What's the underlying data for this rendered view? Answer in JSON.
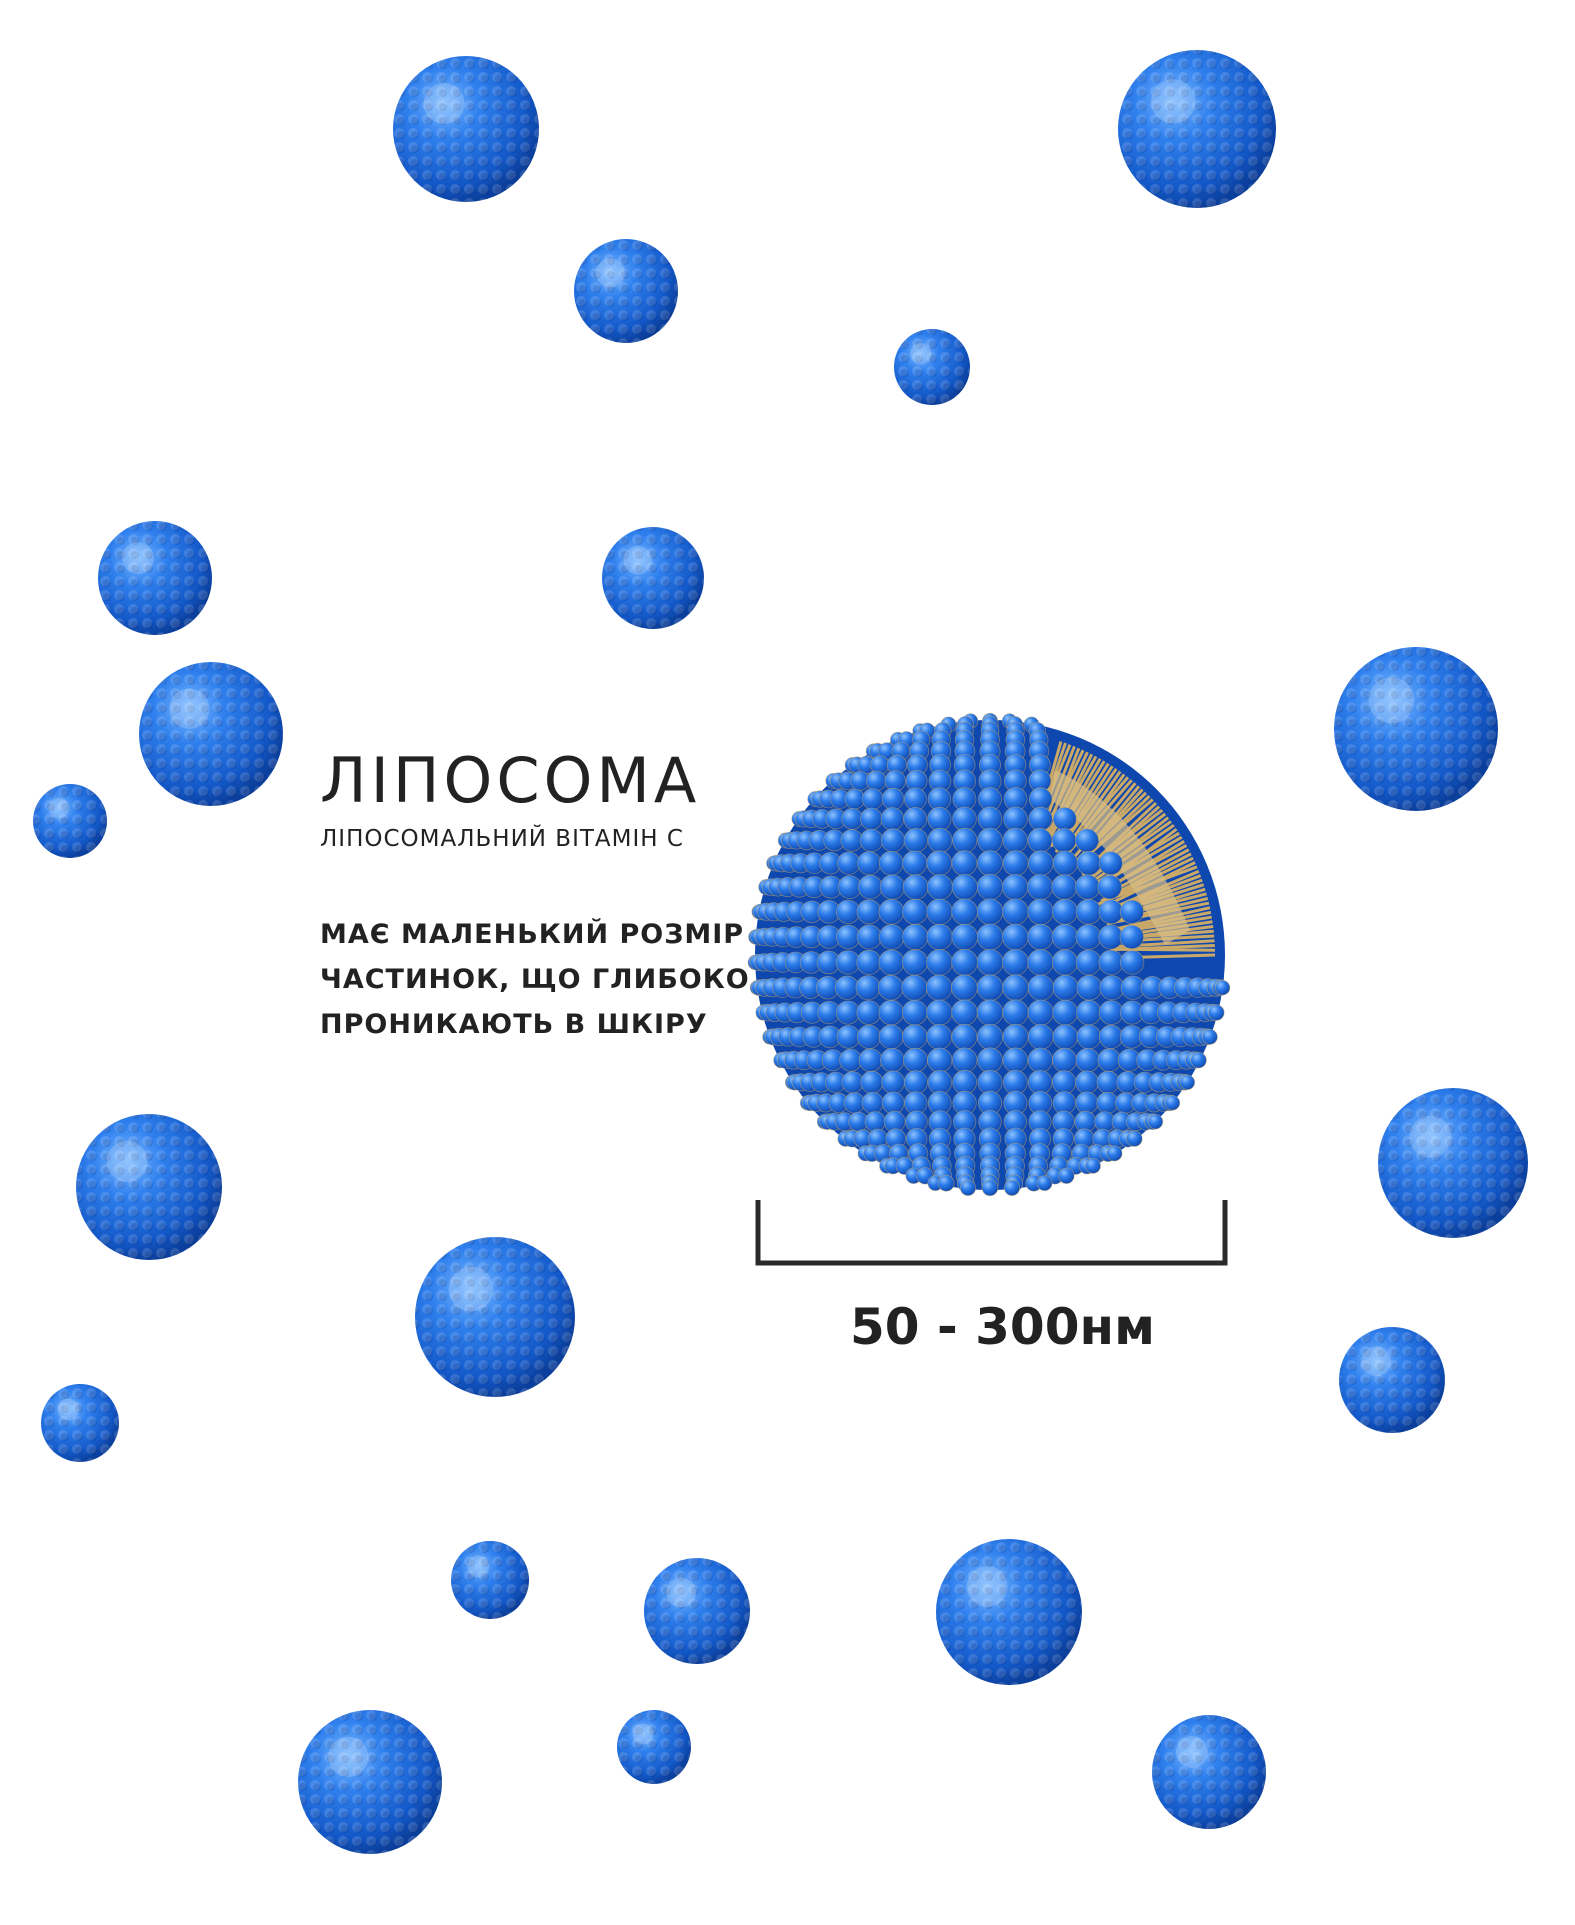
{
  "title": "ЛІПОСОМА",
  "subtitle": "ЛІПОСОМАЛЬНИЙ ВІТАМІН С",
  "description_lines": [
    "МАЄ МАЛЕНЬКИЙ РОЗМІР",
    "ЧАСТИНОК, ЩО ГЛИБОКО",
    "ПРОНИКАЮТЬ В ШКІРУ"
  ],
  "size_label": "50 - 300нм",
  "colors": {
    "sphere_blue": "#1f6fe0",
    "sphere_highlight": "#6fb0ff",
    "sphere_shadow": "#0b3f9c",
    "lipid_tail": "#c9a868",
    "text": "#222222"
  }
}
